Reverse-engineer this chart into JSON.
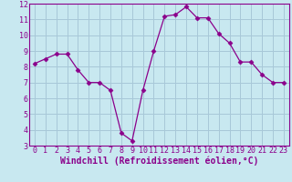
{
  "x": [
    0,
    1,
    2,
    3,
    4,
    5,
    6,
    7,
    8,
    9,
    10,
    11,
    12,
    13,
    14,
    15,
    16,
    17,
    18,
    19,
    20,
    21,
    22,
    23
  ],
  "y": [
    8.2,
    8.5,
    8.8,
    8.8,
    7.8,
    7.0,
    7.0,
    6.5,
    3.8,
    3.3,
    6.5,
    9.0,
    11.2,
    11.3,
    11.8,
    11.1,
    11.1,
    10.1,
    9.5,
    8.3,
    8.3,
    7.5,
    7.0,
    7.0
  ],
  "xlim": [
    -0.5,
    23.5
  ],
  "ylim": [
    3,
    12
  ],
  "yticks": [
    3,
    4,
    5,
    6,
    7,
    8,
    9,
    10,
    11,
    12
  ],
  "xticks": [
    0,
    1,
    2,
    3,
    4,
    5,
    6,
    7,
    8,
    9,
    10,
    11,
    12,
    13,
    14,
    15,
    16,
    17,
    18,
    19,
    20,
    21,
    22,
    23
  ],
  "xlabel": "Windchill (Refroidissement éolien,°C)",
  "line_color": "#8B008B",
  "marker": "D",
  "marker_size": 2.5,
  "bg_color": "#c8e8f0",
  "grid_color": "#a8c8d8",
  "tick_label_fontsize": 6.0,
  "xlabel_fontsize": 7.0,
  "title": ""
}
